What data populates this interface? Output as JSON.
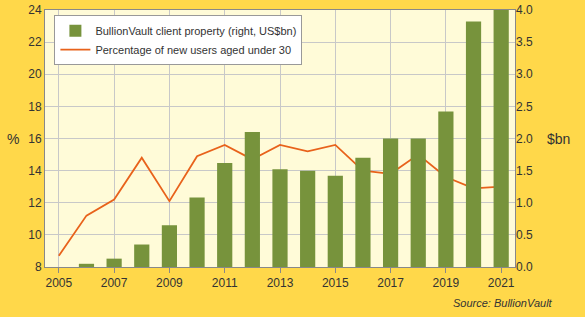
{
  "chart_data": {
    "type": "bar",
    "x": [
      2005,
      2006,
      2007,
      2008,
      2009,
      2010,
      2011,
      2012,
      2013,
      2014,
      2015,
      2016,
      2017,
      2018,
      2019,
      2020,
      2021
    ],
    "series": [
      {
        "name": "BullionVault client property (right, US$bn)",
        "type": "bar",
        "axis": "y2",
        "color": "#77933c",
        "values": [
          0.0,
          0.05,
          0.13,
          0.35,
          0.65,
          1.08,
          1.62,
          2.1,
          1.52,
          1.5,
          1.42,
          1.7,
          2.0,
          2.0,
          2.42,
          3.82,
          4.0
        ]
      },
      {
        "name": "Percentage of new users aged under 30",
        "type": "line",
        "color": "#e8621b",
        "values": [
          8.7,
          11.2,
          12.2,
          14.8,
          12.1,
          14.9,
          15.6,
          14.7,
          15.6,
          15.2,
          15.6,
          14.0,
          13.8,
          15.0,
          13.6,
          12.9,
          13.0
        ]
      }
    ],
    "xlim": [
      2004.5,
      2021.5
    ],
    "xticks": [
      2005,
      2007,
      2009,
      2011,
      2013,
      2015,
      2017,
      2019,
      2021
    ],
    "ylim": [
      8,
      24
    ],
    "yticks": [
      8,
      10,
      12,
      14,
      16,
      18,
      20,
      22,
      24
    ],
    "y2lim": [
      0,
      4
    ],
    "y2ticks": [
      {
        "value": 0,
        "label": "0.0"
      },
      0.5,
      {
        "value": 1,
        "label": "1.0"
      },
      1.5,
      {
        "value": 2,
        "label": "2.0"
      },
      2.5,
      {
        "value": 3,
        "label": "3.0"
      },
      3.5,
      {
        "value": 4,
        "label": "4.0"
      }
    ],
    "y_label": "%",
    "y2_label": "$bn",
    "source": "Source: BullionVault",
    "grid": true,
    "legend": "top left"
  }
}
